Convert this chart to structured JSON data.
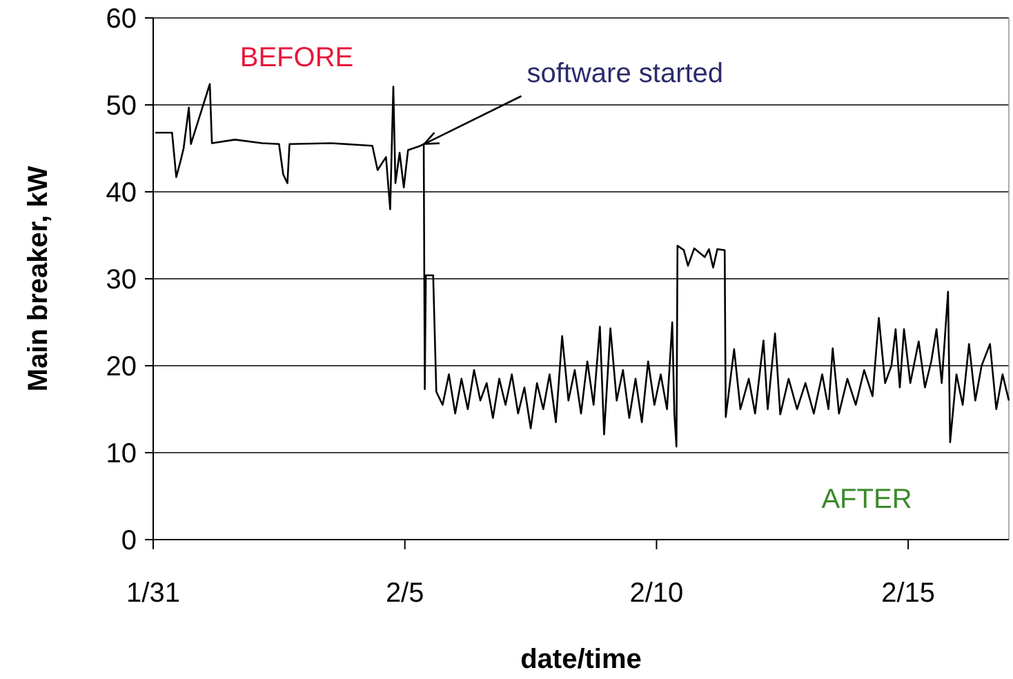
{
  "chart_data": {
    "type": "line",
    "xlabel": "date/time",
    "ylabel": "Main breaker, kW",
    "xlim": [
      "--01-31",
      "--02-17"
    ],
    "xticks": [
      {
        "value": "--01-31",
        "label": "1/31"
      },
      {
        "value": "--02-05",
        "label": "2/5"
      },
      {
        "value": "--02-10",
        "label": "2/10"
      },
      {
        "value": "--02-15",
        "label": "2/15"
      }
    ],
    "ylim": [
      0,
      60
    ],
    "yticks": [
      0,
      10,
      20,
      30,
      40,
      50,
      60
    ],
    "grid": "y",
    "marker": "none",
    "line_style": "solid",
    "annotations": [
      "BEFORE",
      "AFTER",
      {
        "text": "software started",
        "x": "--02-05T07:30",
        "y": 45.3
      }
    ],
    "series": [
      {
        "color": "#000000",
        "x": [
          "--01-31T01:00",
          "--01-31T09:00",
          "--01-31T11:00",
          "--01-31T13:00",
          "--01-31T14:30",
          "--01-31T17:00",
          "--01-31T18:00",
          "--02-01T03:00",
          "--02-01T04:00",
          "--02-01T15:00",
          "--02-02T04:00",
          "--02-02T12:00",
          "--02-02T14:00",
          "--02-02T16:00",
          "--02-02T17:00",
          "--02-03T13:00",
          "--02-04T08:30",
          "--02-04T11:00",
          "--02-04T15:00",
          "--02-04T17:00",
          "--02-04T18:30",
          "--02-04T19:30",
          "--02-04T21:30",
          "--02-04T23:30",
          "--02-05T01:30",
          "--02-05T07:30",
          "--02-05T09:00",
          "--02-05T09:30",
          "--02-05T10:00",
          "--02-05T13:30",
          "--02-05T15:00",
          "--02-05T18:00",
          "--02-05T21:00",
          "--02-06T00:00",
          "--02-06T03:00",
          "--02-06T06:00",
          "--02-06T09:00",
          "--02-06T12:00",
          "--02-06T15:00",
          "--02-06T18:00",
          "--02-06T21:00",
          "--02-07T00:00",
          "--02-07T03:00",
          "--02-07T06:00",
          "--02-07T09:00",
          "--02-07T12:00",
          "--02-07T15:00",
          "--02-07T18:00",
          "--02-07T21:00",
          "--02-08T00:00",
          "--02-08T03:00",
          "--02-08T06:00",
          "--02-08T09:00",
          "--02-08T12:00",
          "--02-08T15:00",
          "--02-08T18:00",
          "--02-08T21:00",
          "--02-08T23:00",
          "--02-09T02:00",
          "--02-09T05:00",
          "--02-09T08:00",
          "--02-09T11:00",
          "--02-09T14:00",
          "--02-09T17:00",
          "--02-09T20:00",
          "--02-09T23:00",
          "--02-10T02:00",
          "--02-10T05:00",
          "--02-10T07:30",
          "--02-10T08:30",
          "--02-10T09:30",
          "--02-10T10:00",
          "--02-10T13:00",
          "--02-10T15:00",
          "--02-10T18:00",
          "--02-10T23:00",
          "--02-11T01:00",
          "--02-11T03:00",
          "--02-11T05:00",
          "--02-11T08:30",
          "--02-11T09:00",
          "--02-11T11:00",
          "--02-11T13:00",
          "--02-11T16:00",
          "--02-11T20:00",
          "--02-11T23:00",
          "--02-12T03:00",
          "--02-12T05:00",
          "--02-12T08:30",
          "--02-12T11:00",
          "--02-12T15:00",
          "--02-12T19:00",
          "--02-12T23:00",
          "--02-13T03:00",
          "--02-13T07:00",
          "--02-13T10:00",
          "--02-13T12:00",
          "--02-13T15:00",
          "--02-13T19:00",
          "--02-13T23:00",
          "--02-14T03:00",
          "--02-14T07:00",
          "--02-14T10:00",
          "--02-14T13:00",
          "--02-14T16:00",
          "--02-14T18:00",
          "--02-14T20:00",
          "--02-14T22:00",
          "--02-15T01:00",
          "--02-15T05:00",
          "--02-15T08:00",
          "--02-15T11:00",
          "--02-15T13:30",
          "--02-15T16:00",
          "--02-15T19:00",
          "--02-15T20:00",
          "--02-15T23:00",
          "--02-16T02:00",
          "--02-16T05:00",
          "--02-16T08:00",
          "--02-16T11:00",
          "--02-16T15:00",
          "--02-16T18:00",
          "--02-16T21:00",
          "--02-17T00:00"
        ],
        "values": [
          46.8,
          46.8,
          41.7,
          43.5,
          45,
          49.7,
          45.5,
          52.4,
          45.6,
          46,
          45.6,
          45.5,
          42,
          41,
          45.5,
          45.6,
          45.3,
          42.5,
          44,
          38,
          52.1,
          41,
          44.5,
          40.5,
          44.8,
          45.3,
          45.5,
          17.3,
          30.4,
          30.4,
          17,
          15.5,
          19,
          14.5,
          18.5,
          15,
          19.5,
          16,
          18,
          14,
          18.5,
          15.5,
          19,
          14.5,
          17.5,
          12.8,
          18,
          15,
          19,
          13.5,
          23.4,
          16,
          19.5,
          14.5,
          20.5,
          15.5,
          24.5,
          12.1,
          24.3,
          16,
          19.5,
          14,
          18.5,
          13.5,
          20.5,
          15.5,
          19,
          15,
          25,
          14.5,
          10.7,
          33.8,
          33.3,
          31.5,
          33.5,
          32.5,
          33.4,
          31.3,
          33.4,
          33.3,
          14.1,
          18,
          21.9,
          15,
          18.5,
          14.5,
          22.9,
          15,
          23.7,
          14.4,
          18.5,
          15,
          18,
          14.5,
          19,
          15,
          22,
          14.5,
          18.5,
          15.5,
          19.5,
          16.5,
          25.5,
          18,
          20,
          24.2,
          17.5,
          24.2,
          18,
          22.8,
          17.5,
          20.5,
          24.2,
          18,
          28.5,
          11.2,
          19,
          15.5,
          22.5,
          16,
          20,
          22.5,
          15,
          19,
          16
        ]
      }
    ]
  }
}
